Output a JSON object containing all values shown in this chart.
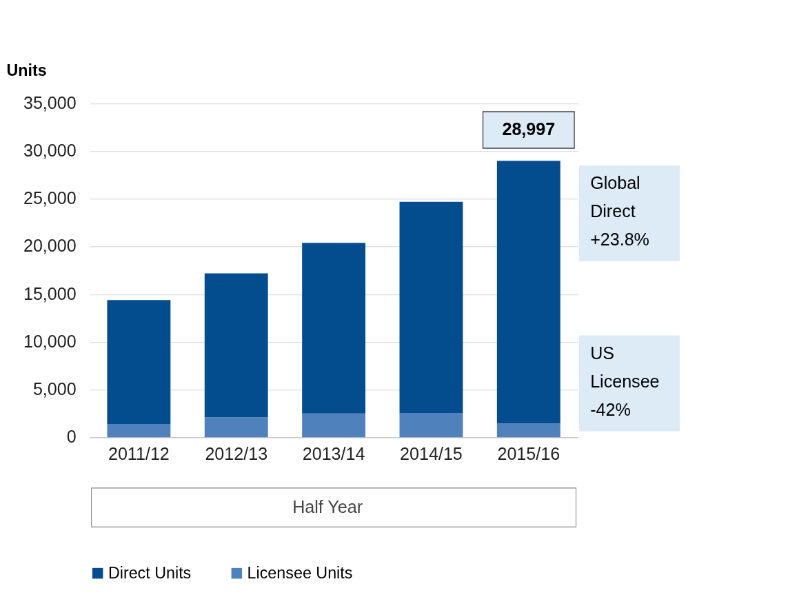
{
  "chart_data": {
    "type": "bar",
    "stacked": true,
    "ylabel": "Units",
    "xlabel": "Half Year",
    "categories": [
      "2011/12",
      "2012/13",
      "2013/14",
      "2014/15",
      "2015/16"
    ],
    "series": [
      {
        "name": "Licensee Units",
        "color": "#4f81bd",
        "values": [
          1400,
          2100,
          2500,
          2550,
          1450
        ]
      },
      {
        "name": "Direct Units",
        "color": "#034d8e",
        "values": [
          13000,
          15100,
          17900,
          22150,
          27547
        ]
      }
    ],
    "totals": [
      null,
      null,
      null,
      null,
      "28,997"
    ],
    "annotations": [
      "Global\nDirect\n+23.8%",
      "US\nLicensee\n-42%"
    ],
    "ylim": [
      0,
      35000
    ],
    "yticks": [
      0,
      {
        "value": 5000,
        "label": "5,000"
      },
      {
        "value": 10000,
        "label": "10,000"
      },
      {
        "value": 15000,
        "label": "15,000"
      },
      {
        "value": 20000,
        "label": "20,000"
      },
      {
        "value": 25000,
        "label": "25,000"
      },
      {
        "value": 30000,
        "label": "30,000"
      },
      {
        "value": 35000,
        "label": "35,000"
      }
    ],
    "grid": "y",
    "legend": "bottom"
  }
}
